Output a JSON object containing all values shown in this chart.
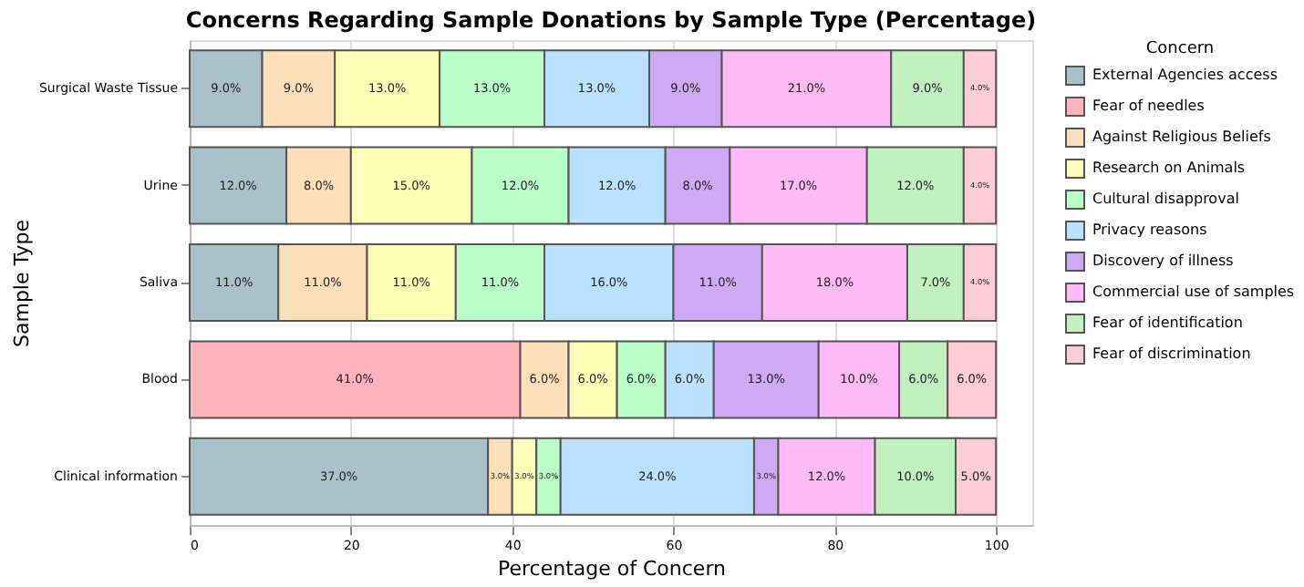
{
  "chart_data": {
    "type": "bar",
    "orientation": "horizontal",
    "stacked": true,
    "title": "Concerns Regarding Sample Donations by Sample Type (Percentage)",
    "xlabel": "Percentage of Concern",
    "ylabel": "Sample Type",
    "legend_title": "Concern",
    "categories": [
      "Surgical Waste Tissue",
      "Urine",
      "Saliva",
      "Blood",
      "Clinical information"
    ],
    "xlim": [
      0,
      104.5
    ],
    "xticks": [
      0,
      20,
      40,
      60,
      80,
      100
    ],
    "grid": "x",
    "legend": "right",
    "series": [
      {
        "name": "External Agencies access",
        "color": "#a9c1c9",
        "values": [
          9,
          12,
          11,
          null,
          37
        ],
        "value_labels": [
          "9.0%",
          "12.0%",
          "11.0%",
          null,
          "37.0%"
        ]
      },
      {
        "name": "Fear of needles",
        "color": "#ffb3ba",
        "values": [
          null,
          null,
          null,
          41,
          null
        ],
        "value_labels": [
          null,
          null,
          null,
          "41.0%",
          null
        ]
      },
      {
        "name": "Against Religious Beliefs",
        "color": "#ffdfba",
        "values": [
          9,
          8,
          11,
          6,
          3
        ],
        "value_labels": [
          "9.0%",
          "8.0%",
          "11.0%",
          "6.0%",
          "3.0%"
        ]
      },
      {
        "name": "Research on Animals",
        "color": "#ffffba",
        "values": [
          13,
          15,
          11,
          6,
          3
        ],
        "value_labels": [
          "13.0%",
          "15.0%",
          "11.0%",
          "6.0%",
          "3.0%"
        ]
      },
      {
        "name": "Cultural disapproval",
        "color": "#baffc9",
        "values": [
          13,
          12,
          11,
          6,
          3
        ],
        "value_labels": [
          "13.0%",
          "12.0%",
          "11.0%",
          "6.0%",
          "3.0%"
        ]
      },
      {
        "name": "Privacy reasons",
        "color": "#bae1ff",
        "values": [
          13,
          12,
          16,
          6,
          24
        ],
        "value_labels": [
          "13.0%",
          "12.0%",
          "16.0%",
          "6.0%",
          "24.0%"
        ]
      },
      {
        "name": "Discovery of illness",
        "color": "#d0a9f5",
        "values": [
          9,
          8,
          11,
          13,
          3
        ],
        "value_labels": [
          "9.0%",
          "8.0%",
          "11.0%",
          "13.0%",
          "3.0%"
        ]
      },
      {
        "name": "Commercial use of samples",
        "color": "#ffbaf7",
        "values": [
          21,
          17,
          18,
          10,
          12
        ],
        "value_labels": [
          "21.0%",
          "17.0%",
          "18.0%",
          "10.0%",
          "12.0%"
        ]
      },
      {
        "name": "Fear of identification",
        "color": "#c1f0c1",
        "values": [
          9,
          12,
          7,
          6,
          10
        ],
        "value_labels": [
          "9.0%",
          "12.0%",
          "7.0%",
          "6.0%",
          "10.0%"
        ]
      },
      {
        "name": "Fear of discrimination",
        "color": "#ffccd9",
        "values": [
          4,
          4,
          4,
          6,
          5
        ],
        "value_labels": [
          "4.0%",
          "4.0%",
          "4.0%",
          "6.0%",
          "5.0%"
        ]
      }
    ]
  }
}
